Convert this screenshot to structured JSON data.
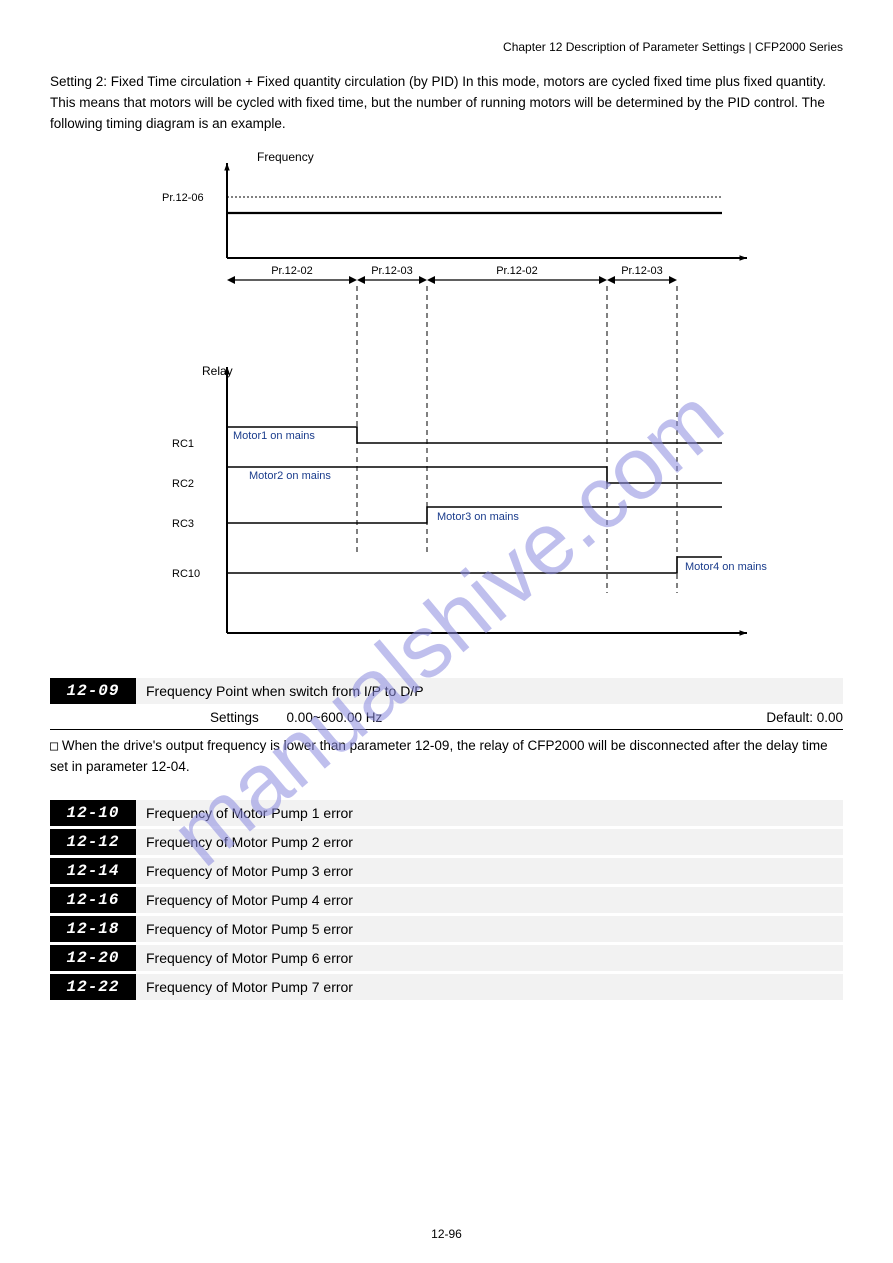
{
  "header": {
    "right": "Chapter 12 Description of Parameter Settings | CFP2000 Series"
  },
  "intro": "Setting 2: Fixed Time circulation + Fixed quantity circulation (by PID)\nIn this mode, motors are cycled fixed time plus fixed quantity. This means that motors will be cycled with fixed time, but the number of running motors will be determined by the PID control. The following timing diagram is an example.",
  "diagram": {
    "y1_label": "Frequency",
    "y1_ref": "Pr.12-06",
    "x_segments": [
      "Pr.12-02",
      "Pr.12-03",
      "Pr.12-02",
      "Pr.12-03"
    ],
    "y2_label": "Relay",
    "rows": [
      {
        "label": "RC1",
        "text": "Motor1 on mains"
      },
      {
        "label": "RC2",
        "text": "Motor2 on mains"
      },
      {
        "label": "RC3",
        "text": "Motor3 on mains"
      },
      {
        "label": "RC10",
        "text": "Motor4 on mains"
      }
    ],
    "colors": {
      "ink": "#000000",
      "annotation": "#1a3c8c"
    },
    "fontsize_small": 11,
    "fontsize_axis": 12
  },
  "param_block": {
    "segments": "12-09",
    "label": "Frequency Point when switch from I/P to D/P",
    "settings_label": "Settings",
    "settings_value": "0.00~600.00 Hz",
    "default_label": "Default:",
    "default_value": "0.00"
  },
  "note": {
    "icon": "□",
    "text": "When the drive's output frequency is lower than parameter 12-09, the relay of CFP2000 will be disconnected after the delay time set in parameter 12-04."
  },
  "param_group": {
    "group_title_left": "segments",
    "rows": [
      {
        "seg": "12-10",
        "label": "Frequency of Motor Pump 1 error"
      },
      {
        "seg": "12-12",
        "label": "Frequency of Motor Pump 2 error"
      },
      {
        "seg": "12-14",
        "label": "Frequency of Motor Pump 3 error"
      },
      {
        "seg": "12-16",
        "label": "Frequency of Motor Pump 4 error"
      },
      {
        "seg": "12-18",
        "label": "Frequency of Motor Pump 5 error"
      },
      {
        "seg": "12-20",
        "label": "Frequency of Motor Pump 6 error"
      },
      {
        "seg": "12-22",
        "label": "Frequency of Motor Pump 7 error"
      }
    ]
  },
  "footer": "12-96"
}
